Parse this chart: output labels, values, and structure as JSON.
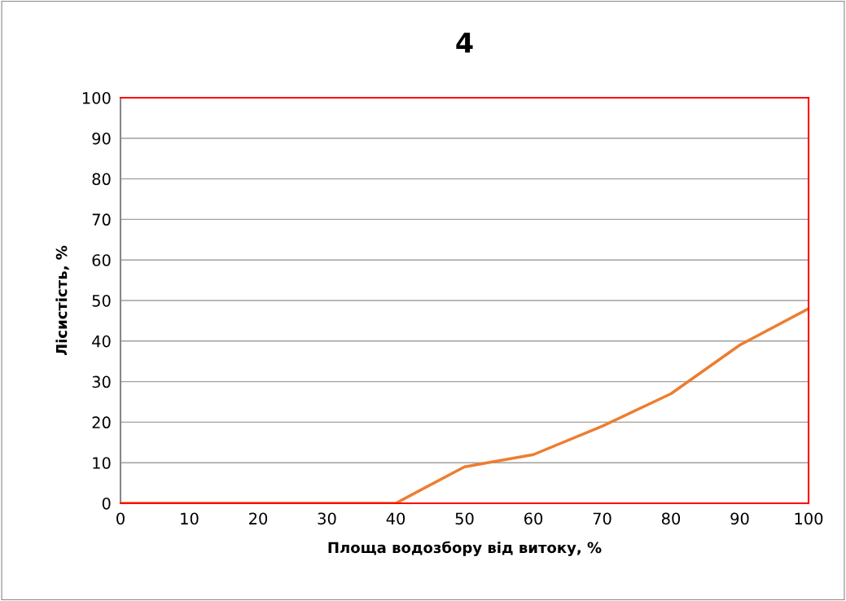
{
  "chart_data": {
    "type": "line",
    "title": "4",
    "xlabel": "Площа водозбору від витоку, %",
    "ylabel": "Лісистість, %",
    "x": [
      0,
      10,
      20,
      30,
      40,
      50,
      60,
      70,
      80,
      90,
      100
    ],
    "series": [
      {
        "color": "#ed7d31",
        "values": [
          0,
          0,
          0,
          0,
          0,
          9,
          12,
          19,
          27,
          39,
          48
        ]
      }
    ],
    "xlim": [
      0,
      100
    ],
    "xticks": [
      0,
      10,
      20,
      30,
      40,
      50,
      60,
      70,
      80,
      90,
      100
    ],
    "ylim": [
      0,
      100
    ],
    "yticks": [
      0,
      10,
      20,
      30,
      40,
      50,
      60,
      70,
      80,
      90,
      100
    ],
    "grid": "y",
    "marker": "none",
    "line_style": "solid"
  }
}
